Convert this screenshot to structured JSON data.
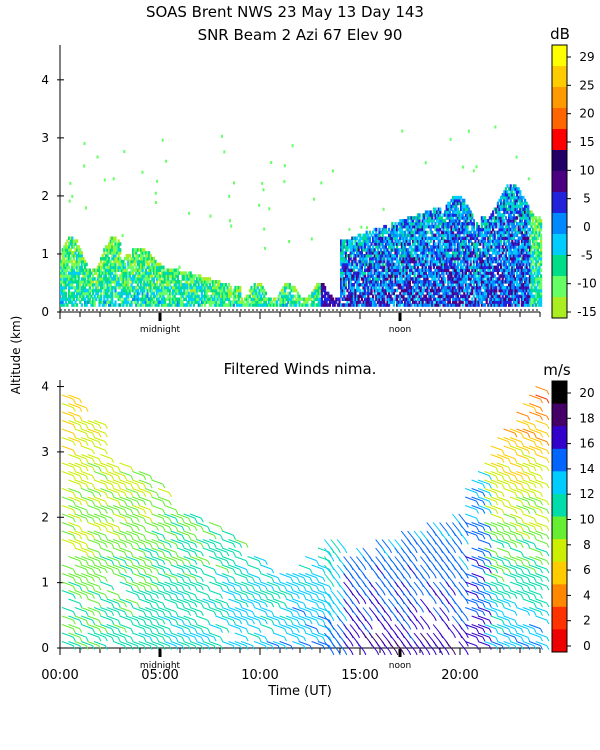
{
  "figure": {
    "title_line1": "SOAS Brent NWS  23 May 13 Day 143",
    "title_line2": "SNR Beam 2 Azi  67 Elev 90",
    "shared_ylabel": "Altitude (km)",
    "xlabel": "Time (UT)"
  },
  "chart_data": [
    {
      "type": "heatmap",
      "title": "SNR Beam 2 Azi  67 Elev 90",
      "ylim": [
        0,
        4.6
      ],
      "yticks": [
        0,
        1,
        2,
        3,
        4
      ],
      "xlim": [
        0,
        24
      ],
      "markers": [
        {
          "label": "midnight",
          "x": 5.0
        },
        {
          "label": "noon",
          "x": 17.0
        }
      ],
      "colorbar": {
        "unit": "dB",
        "ticks": [
          29,
          25,
          20,
          15,
          10,
          5,
          0,
          -5,
          -10,
          -15
        ],
        "colors": [
          "#ffff00",
          "#ffcc00",
          "#ff9900",
          "#ff6600",
          "#ff0000",
          "#220066",
          "#4b0082",
          "#2222dd",
          "#0088ff",
          "#00ccff",
          "#00dd88",
          "#66ff66",
          "#aaee22"
        ]
      }
    },
    {
      "type": "scatter",
      "title": "Filtered Winds nima.",
      "ylim": [
        0,
        4.1
      ],
      "yticks": [
        0,
        1,
        2,
        3,
        4
      ],
      "xlim": [
        0,
        24
      ],
      "xticks": [
        "00:00",
        "05:00",
        "10:00",
        "15:00",
        "20:00"
      ],
      "xtick_values": [
        0,
        5,
        10,
        15,
        20
      ],
      "markers": [
        {
          "label": "midnight",
          "x": 5.0
        },
        {
          "label": "noon",
          "x": 17.0
        }
      ],
      "colorbar": {
        "unit": "m/s",
        "ticks": [
          20,
          18,
          16,
          14,
          12,
          10,
          8,
          6,
          4,
          2,
          0
        ],
        "colors": [
          "#000000",
          "#440066",
          "#3300cc",
          "#0066ff",
          "#00ccff",
          "#00ddaa",
          "#66ee33",
          "#ccee00",
          "#ffcc00",
          "#ff8800",
          "#ff3300",
          "#ee0000"
        ]
      }
    }
  ]
}
